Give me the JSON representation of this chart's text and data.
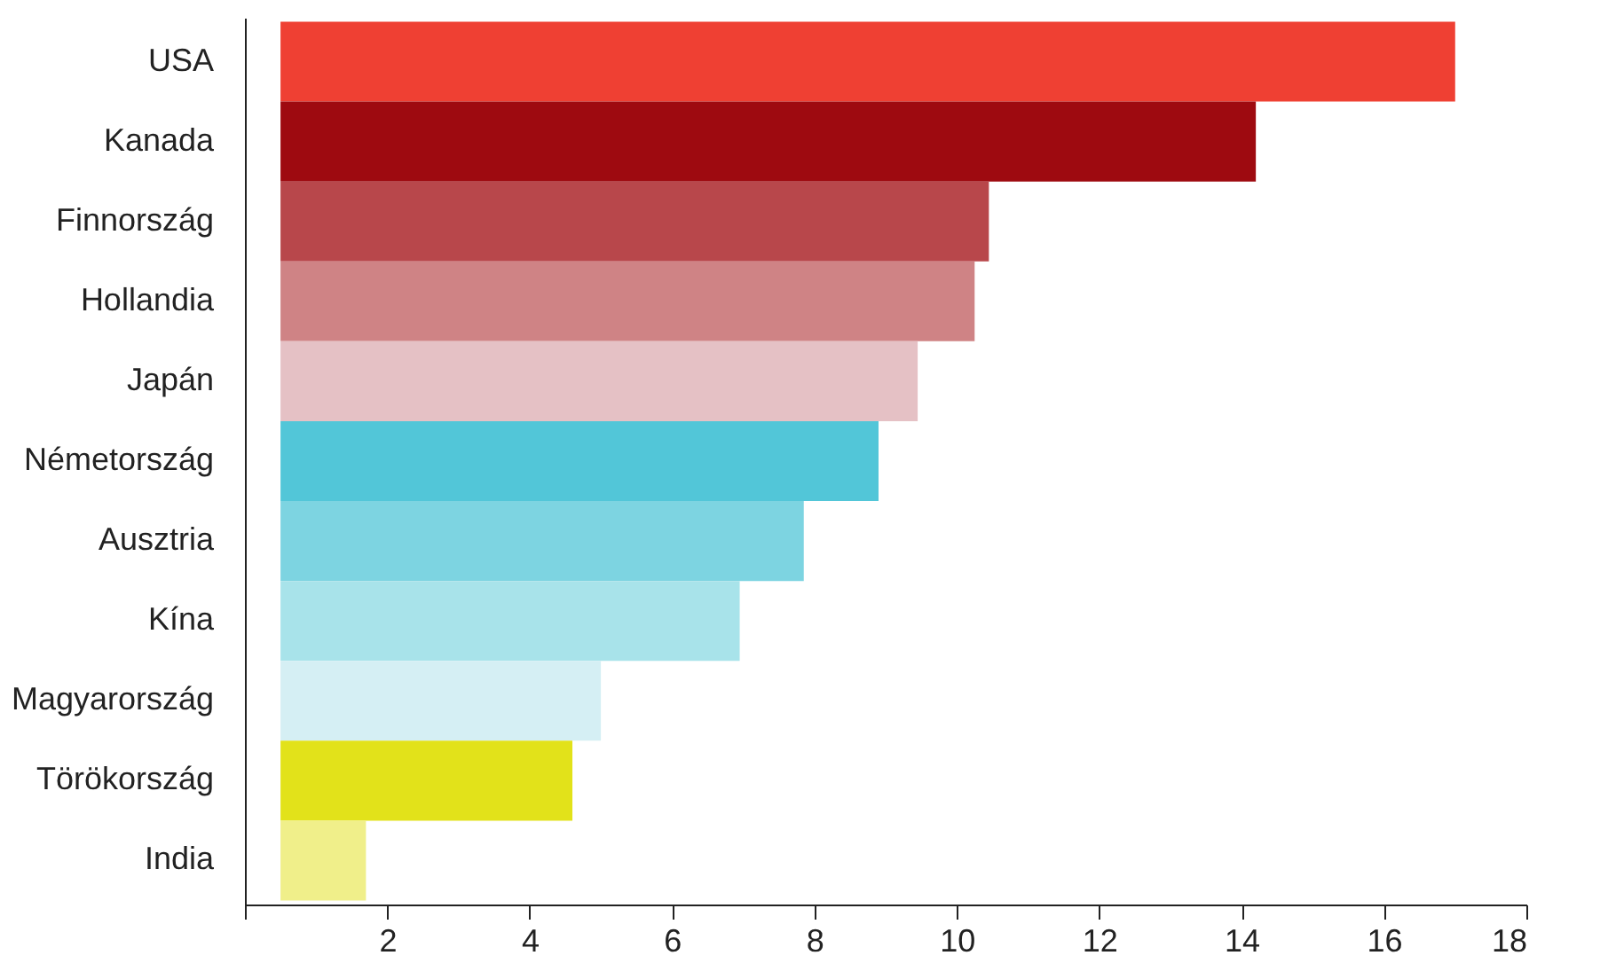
{
  "chart_data": {
    "type": "bar",
    "orientation": "horizontal",
    "categories": [
      "USA",
      "Kanada",
      "Finnország",
      "Hollandia",
      "Japán",
      "Németország",
      "Ausztria",
      "Kína",
      "Magyarország",
      "Törökország",
      "India"
    ],
    "base": [
      0.5,
      0.5,
      0.5,
      0.5,
      0.5,
      0.5,
      0.5,
      0.5,
      0.5,
      0.5,
      0.5
    ],
    "values": [
      16.5,
      13.7,
      9.95,
      9.75,
      8.95,
      8.4,
      7.35,
      6.45,
      4.5,
      4.1,
      1.2
    ],
    "colors": [
      "#ef4033",
      "#9e0a10",
      "#b8474b",
      "#cf8385",
      "#e5c1c5",
      "#52c6d8",
      "#7dd4e1",
      "#a8e3ea",
      "#d5eff4",
      "#e2e21a",
      "#f0ef8a"
    ],
    "xlim": [
      0,
      18
    ],
    "xticks": [
      {
        "value": 0,
        "label": null
      },
      2,
      4,
      6,
      8,
      10,
      12,
      14,
      16,
      18
    ],
    "grid": false,
    "legend": false
  }
}
